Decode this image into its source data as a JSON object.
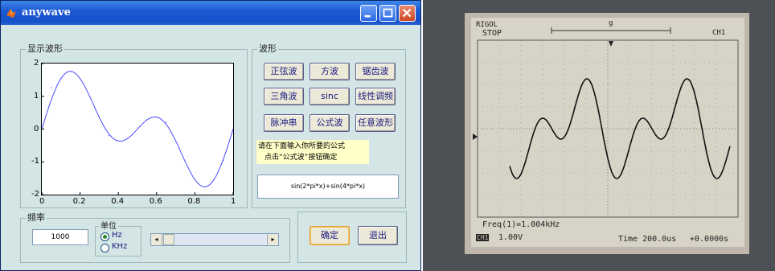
{
  "window": {
    "title": "anywave",
    "accent": "#1552c8",
    "background": "#d4e5e5",
    "icon": "matlab-icon"
  },
  "display_panel": {
    "label": "显示波形",
    "chart_data": {
      "type": "line",
      "title": "",
      "xlabel": "",
      "ylabel": "",
      "xlim": [
        0,
        1
      ],
      "ylim": [
        -2,
        2
      ],
      "xticks": [
        "0",
        "0.2",
        "0.4",
        "0.6",
        "0.8",
        "1"
      ],
      "yticks": [
        "2",
        "1",
        "0",
        "-1",
        "-2"
      ],
      "grid": false,
      "series": [
        {
          "color": "#4b4bff",
          "x": [
            0,
            0.05,
            0.1,
            0.15,
            0.2,
            0.25,
            0.3,
            0.35,
            0.4,
            0.45,
            0.5,
            0.55,
            0.6,
            0.65,
            0.7,
            0.75,
            0.8,
            0.85,
            0.9,
            0.95,
            1
          ],
          "y": [
            0,
            1.26,
            1.54,
            1.76,
            1.54,
            1.0,
            0.36,
            -0.2,
            -0.36,
            -0.28,
            0,
            0.28,
            0.36,
            0.2,
            -0.36,
            -1.0,
            -1.54,
            -1.76,
            -1.54,
            -0.95,
            0
          ]
        }
      ]
    }
  },
  "waveform_panel": {
    "label": "波形",
    "buttons": [
      "正弦波",
      "方波",
      "锯齿波",
      "三角波",
      "sinc",
      "线性调频",
      "脉冲串",
      "公式波",
      "任意波形"
    ],
    "hint_line1": "请在下面输入你所要的公式",
    "hint_line2": "点击“公式波”按钮确定",
    "formula": "sin(2*pi*x)+sin(4*pi*x)"
  },
  "freq_panel": {
    "label": "频率",
    "value": "1000",
    "unit_label": "单位",
    "unit_hz": "Hz",
    "unit_khz": "KHz",
    "selected_unit": "Hz",
    "slider_left_arrow": "◂",
    "slider_right_arrow": "▸"
  },
  "actions": {
    "ok": "确定",
    "exit": "退出"
  },
  "oscilloscope": {
    "brand": "RIGOL",
    "state": "STOP",
    "trigger_mark": "g",
    "channel": "CH1",
    "freq_readout": "Freq(1)=1.004kHz",
    "ch_badge": "CH1",
    "volts_div": "1.00V",
    "time_div": "Time 200.0us",
    "offset": "+0.0000s",
    "trace_color": "#111111"
  }
}
